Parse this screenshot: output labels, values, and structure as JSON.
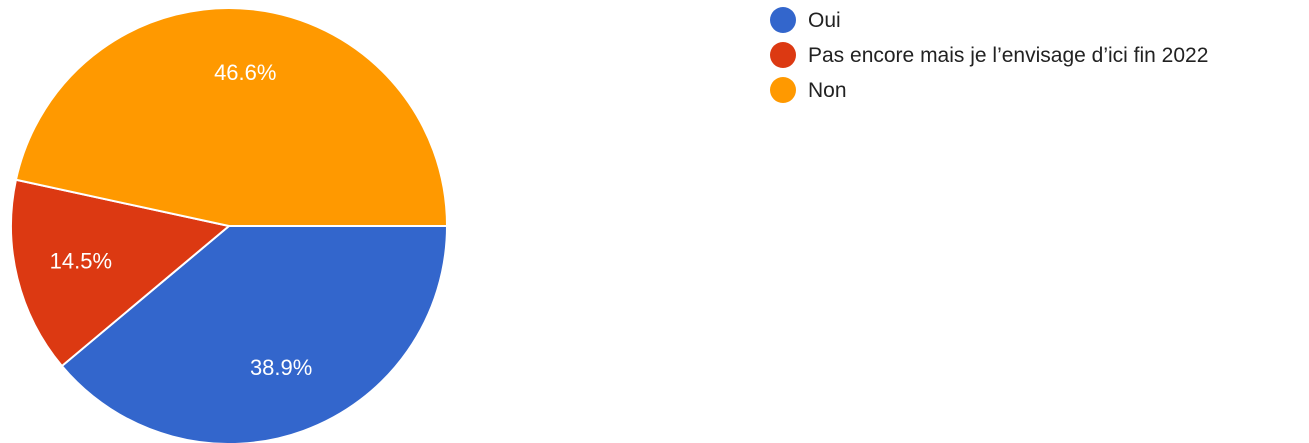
{
  "chart_data": {
    "type": "pie",
    "categories": [
      "Oui",
      "Pas encore mais je l’envisage d’ici fin 2022",
      "Non"
    ],
    "values": [
      38.9,
      14.5,
      46.6
    ],
    "value_labels": [
      "38.9%",
      "14.5%",
      "46.6%"
    ],
    "colors": [
      "#3366cc",
      "#dc3912",
      "#ff9900"
    ],
    "legend": "right"
  }
}
